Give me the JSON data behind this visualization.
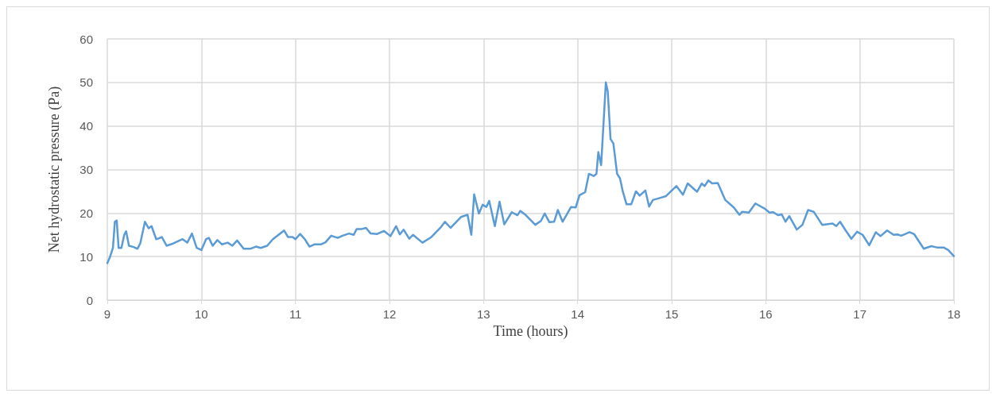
{
  "chart_data": {
    "type": "line",
    "xlabel": "Time (hours)",
    "ylabel": "Net hydrostatic pressure (Pa)",
    "xlim": [
      9,
      18
    ],
    "xticks": [
      9,
      10,
      11,
      12,
      13,
      14,
      15,
      16,
      17,
      18
    ],
    "ylim": [
      0,
      60
    ],
    "yticks": [
      0,
      10,
      20,
      30,
      40,
      50,
      60
    ],
    "grid": true,
    "marker": "none",
    "line_style": "solid",
    "series": [
      {
        "color": "#5b9bd5",
        "x": [
          9.0,
          9.03,
          9.06,
          9.08,
          9.1,
          9.12,
          9.15,
          9.18,
          9.2,
          9.23,
          9.28,
          9.32,
          9.35,
          9.4,
          9.44,
          9.47,
          9.52,
          9.55,
          9.58,
          9.63,
          9.7,
          9.75,
          9.8,
          9.85,
          9.9,
          9.95,
          10.0,
          10.05,
          10.08,
          10.12,
          10.17,
          10.22,
          10.28,
          10.33,
          10.38,
          10.45,
          10.52,
          10.58,
          10.63,
          10.7,
          10.76,
          10.82,
          10.88,
          10.92,
          10.97,
          11.0,
          11.05,
          11.1,
          11.15,
          11.2,
          11.27,
          11.32,
          11.38,
          11.45,
          11.5,
          11.57,
          11.62,
          11.65,
          11.7,
          11.75,
          11.8,
          11.87,
          11.94,
          12.01,
          12.07,
          12.11,
          12.15,
          12.21,
          12.25,
          12.35,
          12.44,
          12.54,
          12.59,
          12.65,
          12.76,
          12.83,
          12.87,
          12.9,
          12.95,
          12.99,
          13.03,
          13.06,
          13.12,
          13.17,
          13.22,
          13.3,
          13.36,
          13.39,
          13.45,
          13.55,
          13.61,
          13.65,
          13.7,
          13.75,
          13.79,
          13.84,
          13.88,
          13.93,
          13.98,
          14.02,
          14.08,
          14.12,
          14.17,
          14.2,
          14.22,
          14.25,
          14.3,
          14.32,
          14.35,
          14.38,
          14.42,
          14.45,
          14.48,
          14.52,
          14.57,
          14.62,
          14.66,
          14.72,
          14.76,
          14.8,
          14.88,
          14.94,
          15.05,
          15.12,
          15.17,
          15.27,
          15.32,
          15.35,
          15.39,
          15.43,
          15.49,
          15.57,
          15.66,
          15.72,
          15.75,
          15.82,
          15.89,
          15.99,
          16.04,
          16.08,
          16.13,
          16.17,
          16.21,
          16.25,
          16.33,
          16.39,
          16.45,
          16.51,
          16.6,
          16.71,
          16.75,
          16.79,
          16.85,
          16.91,
          16.97,
          17.03,
          17.1,
          17.17,
          17.22,
          17.29,
          17.36,
          17.4,
          17.44,
          17.53,
          17.58,
          17.68,
          17.76,
          17.82,
          17.89,
          17.94,
          18.0
        ],
        "values": [
          8.5,
          10,
          12,
          18,
          18.3,
          12,
          12,
          15,
          15.8,
          12.5,
          12.2,
          11.8,
          13,
          18,
          16.5,
          17,
          14,
          14.2,
          14.5,
          12.5,
          13,
          13.5,
          14,
          13.2,
          15.3,
          12,
          11.5,
          14,
          14.3,
          12.5,
          13.8,
          12.8,
          13.2,
          12.5,
          13.7,
          11.8,
          11.8,
          12.3,
          12,
          12.5,
          14,
          15,
          16,
          14.5,
          14.5,
          14,
          15.2,
          14,
          12.3,
          12.8,
          12.8,
          13.3,
          14.8,
          14.3,
          14.8,
          15.3,
          15,
          16.3,
          16.3,
          16.6,
          15.3,
          15.2,
          15.9,
          14.7,
          17,
          15.1,
          16.2,
          14.1,
          15,
          13.2,
          14.4,
          16.6,
          18,
          16.6,
          19.1,
          19.6,
          15,
          24.3,
          19.9,
          21.9,
          21.4,
          22.8,
          17,
          22.6,
          17.4,
          20.2,
          19.5,
          20.5,
          19.5,
          17.3,
          18.2,
          19.9,
          17.9,
          18,
          20.7,
          18,
          19.5,
          21.4,
          21.3,
          24.1,
          24.8,
          29,
          28.5,
          29,
          34,
          31,
          50,
          48,
          37,
          36,
          29,
          28,
          25,
          22,
          22,
          25,
          24,
          25.2,
          21.5,
          23,
          23.5,
          23.9,
          26.2,
          24.2,
          26.8,
          24.9,
          26.8,
          26.2,
          27.5,
          26.8,
          26.9,
          23,
          21.3,
          19.6,
          20.3,
          20.1,
          22.2,
          21,
          20.1,
          20.2,
          19.5,
          19.7,
          18,
          19.3,
          16.2,
          17.3,
          20.7,
          20.3,
          17.3,
          17.6,
          17,
          18,
          16,
          14.1,
          15.7,
          15,
          12.6,
          15.6,
          14.7,
          16,
          15,
          15.1,
          14.8,
          15.6,
          15.1,
          11.8,
          12.4,
          12.1,
          12.1,
          11.5,
          10.1
        ]
      }
    ]
  }
}
